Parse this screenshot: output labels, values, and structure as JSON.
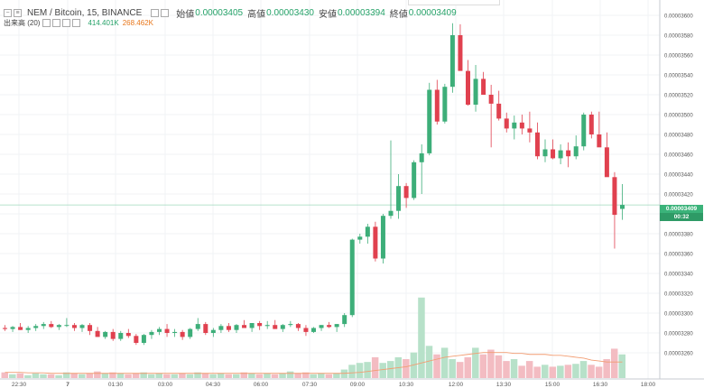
{
  "legend": {
    "symbol": "NEM / Bitcoin, 15, BINANCE",
    "open_label": "始値",
    "open": "0.00003405",
    "high_label": "高値",
    "high": "0.00003430",
    "low_label": "安値",
    "low": "0.00003394",
    "close_label": "終値",
    "close": "0.00003409",
    "volume_label": "出来高 (20)",
    "volume_up": "414.401K",
    "volume_down": "268.462K"
  },
  "price_tag": {
    "value": "0.00003409",
    "countdown": "00:32"
  },
  "colors": {
    "up": "#3dae79",
    "down": "#e0414f",
    "vol_up": "#b7e1c9",
    "vol_down": "#f3bcc2",
    "ma": "#f29d72"
  },
  "chart_data": {
    "type": "candlestick",
    "y_axis_ticks": [
      "0.00003600",
      "0.00003580",
      "0.00003560",
      "0.00003540",
      "0.00003520",
      "0.00003500",
      "0.00003480",
      "0.00003460",
      "0.00003440",
      "0.00003420",
      "0.00003400",
      "0.00003380",
      "0.00003360",
      "0.00003340",
      "0.00003320",
      "0.00003300",
      "0.00003280",
      "0.00003260"
    ],
    "x_axis_ticks": [
      "22:30",
      "7",
      "01:30",
      "03:00",
      "04:30",
      "06:00",
      "07:30",
      "09:00",
      "10:30",
      "12:00",
      "13:30",
      "15:00",
      "16:30",
      "18:00"
    ],
    "candles": [
      [
        3285,
        3288,
        3282,
        3284
      ],
      [
        3284,
        3287,
        3281,
        3286
      ],
      [
        3286,
        3290,
        3283,
        3283
      ],
      [
        3283,
        3287,
        3280,
        3285
      ],
      [
        3285,
        3289,
        3282,
        3287
      ],
      [
        3287,
        3291,
        3284,
        3289
      ],
      [
        3289,
        3292,
        3285,
        3286
      ],
      [
        3286,
        3289,
        3283,
        3288
      ],
      [
        3288,
        3295,
        3286,
        3288
      ],
      [
        3288,
        3290,
        3282,
        3285
      ],
      [
        3285,
        3289,
        3281,
        3288
      ],
      [
        3288,
        3290,
        3278,
        3282
      ],
      [
        3282,
        3286,
        3276,
        3276
      ],
      [
        3276,
        3282,
        3274,
        3281
      ],
      [
        3281,
        3284,
        3272,
        3274
      ],
      [
        3274,
        3282,
        3272,
        3280
      ],
      [
        3280,
        3284,
        3275,
        3277
      ],
      [
        3277,
        3279,
        3268,
        3270
      ],
      [
        3270,
        3279,
        3268,
        3278
      ],
      [
        3278,
        3283,
        3274,
        3281
      ],
      [
        3281,
        3286,
        3278,
        3284
      ],
      [
        3284,
        3289,
        3276,
        3280
      ],
      [
        3280,
        3284,
        3276,
        3281
      ],
      [
        3281,
        3283,
        3273,
        3276
      ],
      [
        3276,
        3285,
        3274,
        3284
      ],
      [
        3284,
        3295,
        3282,
        3289
      ],
      [
        3289,
        3291,
        3278,
        3280
      ],
      [
        3280,
        3285,
        3276,
        3283
      ],
      [
        3283,
        3289,
        3280,
        3287
      ],
      [
        3287,
        3290,
        3281,
        3283
      ],
      [
        3283,
        3289,
        3280,
        3288
      ],
      [
        3288,
        3293,
        3285,
        3285
      ],
      [
        3285,
        3290,
        3281,
        3290
      ],
      [
        3290,
        3292,
        3283,
        3287
      ],
      [
        3287,
        3292,
        3284,
        3288
      ],
      [
        3288,
        3293,
        3284,
        3284
      ],
      [
        3284,
        3289,
        3281,
        3288
      ],
      [
        3288,
        3292,
        3286,
        3289
      ],
      [
        3289,
        3290,
        3282,
        3285
      ],
      [
        3285,
        3288,
        3277,
        3281
      ],
      [
        3281,
        3286,
        3280,
        3285
      ],
      [
        3285,
        3288,
        3282,
        3288
      ],
      [
        3288,
        3291,
        3285,
        3286
      ],
      [
        3286,
        3289,
        3281,
        3289
      ],
      [
        3289,
        3300,
        3286,
        3298
      ],
      [
        3298,
        3375,
        3296,
        3374
      ],
      [
        3374,
        3380,
        3370,
        3377
      ],
      [
        3377,
        3390,
        3370,
        3387
      ],
      [
        3387,
        3392,
        3352,
        3355
      ],
      [
        3355,
        3400,
        3350,
        3398
      ],
      [
        3398,
        3474,
        3395,
        3403
      ],
      [
        3403,
        3440,
        3395,
        3428
      ],
      [
        3428,
        3431,
        3406,
        3416
      ],
      [
        3416,
        3454,
        3414,
        3452
      ],
      [
        3452,
        3470,
        3420,
        3461
      ],
      [
        3461,
        3532,
        3459,
        3525
      ],
      [
        3525,
        3535,
        3490,
        3493
      ],
      [
        3493,
        3531,
        3491,
        3528
      ],
      [
        3528,
        3592,
        3522,
        3580
      ],
      [
        3580,
        3591,
        3545,
        3544
      ],
      [
        3544,
        3555,
        3509,
        3510
      ],
      [
        3510,
        3550,
        3503,
        3536
      ],
      [
        3536,
        3543,
        3522,
        3520
      ],
      [
        3520,
        3530,
        3467,
        3511
      ],
      [
        3511,
        3524,
        3494,
        3496
      ],
      [
        3496,
        3502,
        3482,
        3486
      ],
      [
        3486,
        3499,
        3475,
        3492
      ],
      [
        3492,
        3500,
        3480,
        3486
      ],
      [
        3486,
        3503,
        3472,
        3482
      ],
      [
        3482,
        3492,
        3455,
        3458
      ],
      [
        3458,
        3475,
        3452,
        3465
      ],
      [
        3465,
        3475,
        3455,
        3456
      ],
      [
        3456,
        3470,
        3450,
        3464
      ],
      [
        3464,
        3472,
        3447,
        3458
      ],
      [
        3458,
        3479,
        3455,
        3468
      ],
      [
        3468,
        3502,
        3464,
        3500
      ],
      [
        3500,
        3503,
        3476,
        3480
      ],
      [
        3480,
        3503,
        3470,
        3467
      ],
      [
        3467,
        3482,
        3440,
        3437
      ],
      [
        3437,
        3442,
        3365,
        3399
      ],
      [
        3405,
        3430,
        3394,
        3409
      ]
    ],
    "volumes": [
      0.06,
      0.04,
      0.05,
      0.03,
      0.05,
      0.04,
      0.04,
      0.03,
      0.06,
      0.05,
      0.04,
      0.05,
      0.07,
      0.05,
      0.06,
      0.05,
      0.04,
      0.05,
      0.06,
      0.04,
      0.05,
      0.04,
      0.04,
      0.05,
      0.04,
      0.06,
      0.05,
      0.04,
      0.05,
      0.04,
      0.04,
      0.06,
      0.05,
      0.04,
      0.05,
      0.04,
      0.05,
      0.07,
      0.05,
      0.06,
      0.04,
      0.05,
      0.04,
      0.05,
      0.09,
      0.14,
      0.16,
      0.17,
      0.22,
      0.16,
      0.18,
      0.22,
      0.2,
      0.27,
      0.85,
      0.34,
      0.25,
      0.32,
      0.2,
      0.17,
      0.22,
      0.32,
      0.25,
      0.3,
      0.24,
      0.18,
      0.2,
      0.13,
      0.18,
      0.12,
      0.14,
      0.12,
      0.13,
      0.14,
      0.15,
      0.18,
      0.14,
      0.12,
      0.2,
      0.31,
      0.25
    ],
    "volume_ma": [
      0.06,
      0.06,
      0.06,
      0.055,
      0.055,
      0.055,
      0.05,
      0.05,
      0.05,
      0.05,
      0.05,
      0.05,
      0.05,
      0.05,
      0.05,
      0.05,
      0.05,
      0.05,
      0.05,
      0.05,
      0.05,
      0.05,
      0.05,
      0.05,
      0.05,
      0.05,
      0.05,
      0.05,
      0.05,
      0.05,
      0.05,
      0.05,
      0.05,
      0.05,
      0.05,
      0.05,
      0.05,
      0.05,
      0.05,
      0.05,
      0.05,
      0.05,
      0.05,
      0.05,
      0.05,
      0.055,
      0.06,
      0.07,
      0.08,
      0.09,
      0.1,
      0.11,
      0.12,
      0.14,
      0.16,
      0.18,
      0.2,
      0.22,
      0.23,
      0.24,
      0.25,
      0.26,
      0.27,
      0.27,
      0.27,
      0.27,
      0.26,
      0.26,
      0.25,
      0.25,
      0.25,
      0.24,
      0.24,
      0.23,
      0.22,
      0.21,
      0.19,
      0.18,
      0.17,
      0.17,
      0.17
    ],
    "last_price": 3409
  }
}
